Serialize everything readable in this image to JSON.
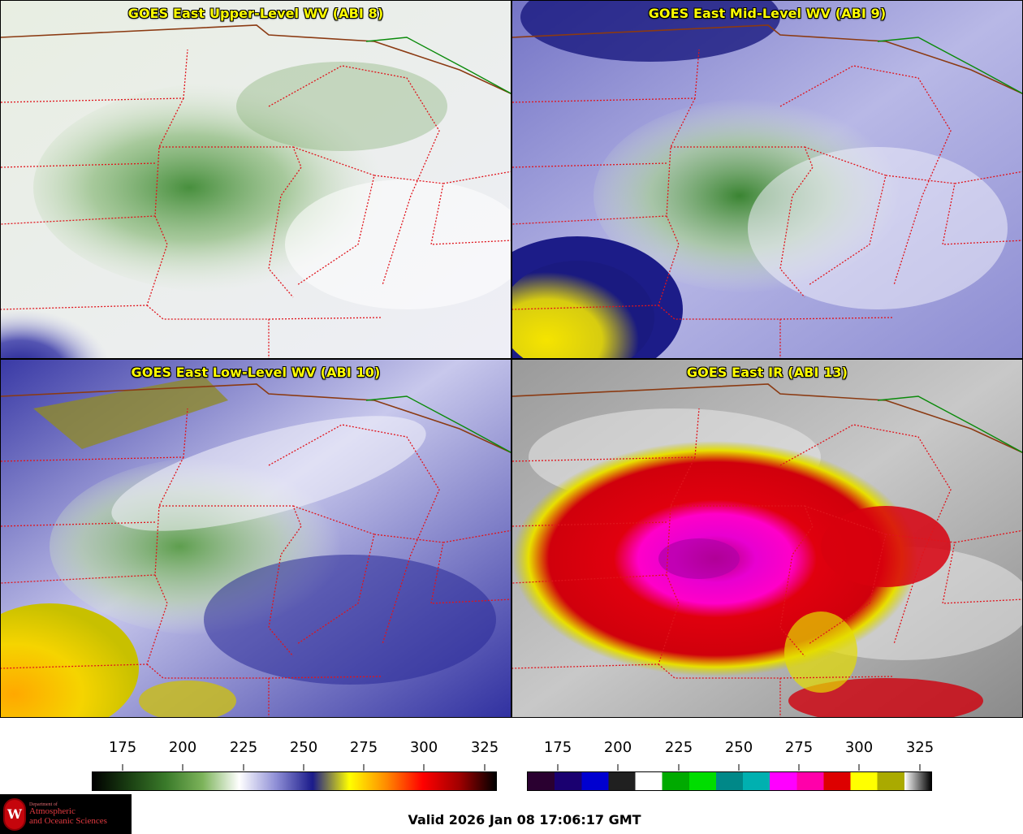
{
  "panels": [
    {
      "title": "GOES East Upper-Level WV (ABI 8)",
      "scheme": "wv_upper"
    },
    {
      "title": "GOES East Mid-Level WV (ABI 9)",
      "scheme": "wv_mid"
    },
    {
      "title": "GOES East Low-Level WV (ABI 10)",
      "scheme": "wv_low"
    },
    {
      "title": "GOES East IR (ABI 13)",
      "scheme": "ir"
    }
  ],
  "colorbars": [
    {
      "name": "wv-colorbar",
      "ticks": [
        "175",
        "200",
        "225",
        "250",
        "275",
        "300",
        "325"
      ],
      "stops": [
        "#000000",
        "#1a3f12",
        "#3a7a2a",
        "#7cb35a",
        "#ffffff",
        "#8f8fd6",
        "#1a1a8a",
        "#ffff00",
        "#ff8c00",
        "#ff0000",
        "#a00000",
        "#000000"
      ]
    },
    {
      "name": "ir-colorbar",
      "ticks": [
        "175",
        "200",
        "225",
        "250",
        "275",
        "300",
        "325"
      ],
      "segments": [
        "#2a0030",
        "#1a0070",
        "#0000d0",
        "#202020",
        "#ffffff",
        "#00aa00",
        "#00dd00",
        "#008888",
        "#00b0b0",
        "#ff00ff",
        "#ff00aa",
        "#dd0000",
        "#ffff00",
        "#aaaa00",
        "#ffffff"
      ]
    }
  ],
  "footer": {
    "valid": "Valid 2026 Jan 08 17:06:17 GMT",
    "logo": {
      "line0": "Department of",
      "line1": "Atmospheric",
      "line2": "and Oceanic Sciences"
    }
  }
}
